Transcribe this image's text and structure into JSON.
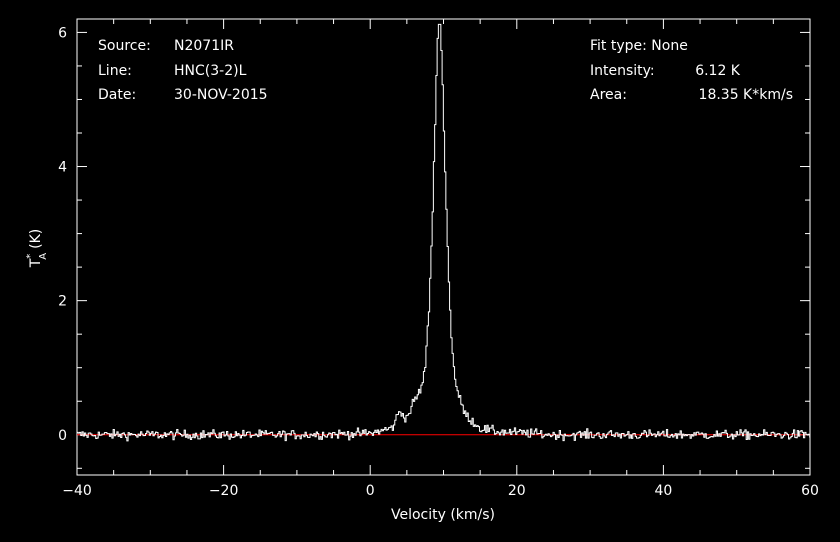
{
  "header": {
    "source_label": "Source:",
    "source_value": "N2071IR",
    "line_label": "Line:",
    "line_value": "HNC(3-2)L",
    "date_label": "Date:",
    "date_value": "30-NOV-2015",
    "fit_type": "Fit type: None",
    "intensity_label": "Intensity:",
    "intensity_value": "6.12 K",
    "area_label": "Area:",
    "area_value": "18.35 K*km/s"
  },
  "chart_data": {
    "type": "line",
    "xlabel": "Velocity (km/s)",
    "ylabel_main": "T",
    "ylabel_sup": "*",
    "ylabel_sub": "A",
    "ylabel_unit": "(K)",
    "xlim": [
      -40,
      60
    ],
    "ylim": [
      -0.6,
      6.2
    ],
    "xticks": [
      -40,
      -20,
      0,
      20,
      40,
      60
    ],
    "xtick_labels": [
      "−40",
      "−20",
      "0",
      "20",
      "40",
      "60"
    ],
    "yticks": [
      0,
      2,
      4,
      6
    ],
    "ytick_labels": [
      "0",
      "2",
      "4",
      "6"
    ],
    "grid": false,
    "series": [
      {
        "style": "steps",
        "color": "#ffffff",
        "peak_velocity": 9.5,
        "peak_intensity": 6.12,
        "profile": {
          "x": [
            -40,
            -10,
            0,
            3,
            4,
            5,
            6,
            6.5,
            7,
            7.5,
            8,
            8.5,
            9,
            9.2,
            9.5,
            9.8,
            10,
            10.5,
            11,
            11.5,
            12,
            13,
            14,
            15,
            17,
            25,
            60
          ],
          "y": [
            0,
            0,
            0.02,
            0.1,
            0.35,
            0.25,
            0.5,
            0.6,
            0.7,
            1.0,
            1.8,
            3.2,
            5.2,
            5.9,
            6.12,
            5.6,
            4.8,
            3.0,
            1.6,
            0.9,
            0.6,
            0.3,
            0.2,
            0.1,
            0.05,
            0,
            0
          ]
        },
        "noise_rms": 0.07
      },
      {
        "style": "line",
        "color": "#ff0000",
        "x": [
          -40,
          60
        ],
        "y": [
          0,
          0
        ]
      }
    ]
  }
}
